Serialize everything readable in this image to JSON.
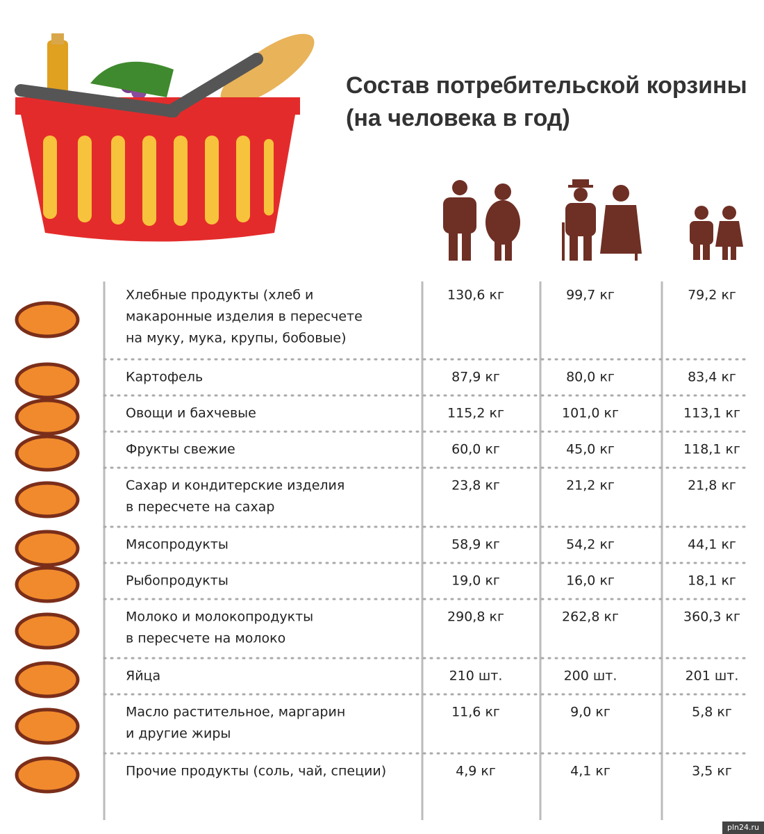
{
  "title": [
    "Состав потребительской корзины",
    "(на человека в год)"
  ],
  "table": {
    "rows": [
      {
        "label": [
          "Хлебные продукты (хлеб и",
          "макаронные изделия в пересчете",
          "на муку, мука, крупы, бобовые)"
        ],
        "values": [
          "130,6 кг",
          "99,7 кг",
          "79,2 кг"
        ]
      },
      {
        "label": [
          "Картофель"
        ],
        "values": [
          "87,9 кг",
          "80,0 кг",
          "83,4 кг"
        ]
      },
      {
        "label": [
          "Овощи и бахчевые"
        ],
        "values": [
          "115,2 кг",
          "101,0 кг",
          "113,1 кг"
        ]
      },
      {
        "label": [
          "Фрукты свежие"
        ],
        "values": [
          "60,0 кг",
          "45,0 кг",
          "118,1 кг"
        ]
      },
      {
        "label": [
          "Сахар и кондитерские изделия",
          "в пересчете на сахар"
        ],
        "values": [
          "23,8 кг",
          "21,2 кг",
          "21,8 кг"
        ]
      },
      {
        "label": [
          "Мясопродукты"
        ],
        "values": [
          "58,9 кг",
          "54,2 кг",
          "44,1 кг"
        ]
      },
      {
        "label": [
          "Рыбопродукты"
        ],
        "values": [
          "19,0 кг",
          "16,0 кг",
          "18,1 кг"
        ]
      },
      {
        "label": [
          "Молоко и молокопродукты",
          "в пересчете на молоко"
        ],
        "values": [
          "290,8 кг",
          "262,8 кг",
          "360,3 кг"
        ]
      },
      {
        "label": [
          "Яйца"
        ],
        "values": [
          "210 шт.",
          "200 шт.",
          "201 шт."
        ]
      },
      {
        "label": [
          "Масло растительное, маргарин",
          "и другие жиры"
        ],
        "values": [
          "11,6 кг",
          "9,0 кг",
          "5,8 кг"
        ]
      },
      {
        "label": [
          "Прочие продукты (соль, чай, специи)"
        ],
        "values": [
          "4,9 кг",
          "4,1 кг",
          "3,5 кг"
        ]
      }
    ]
  },
  "watermark": "pln24.ru"
}
